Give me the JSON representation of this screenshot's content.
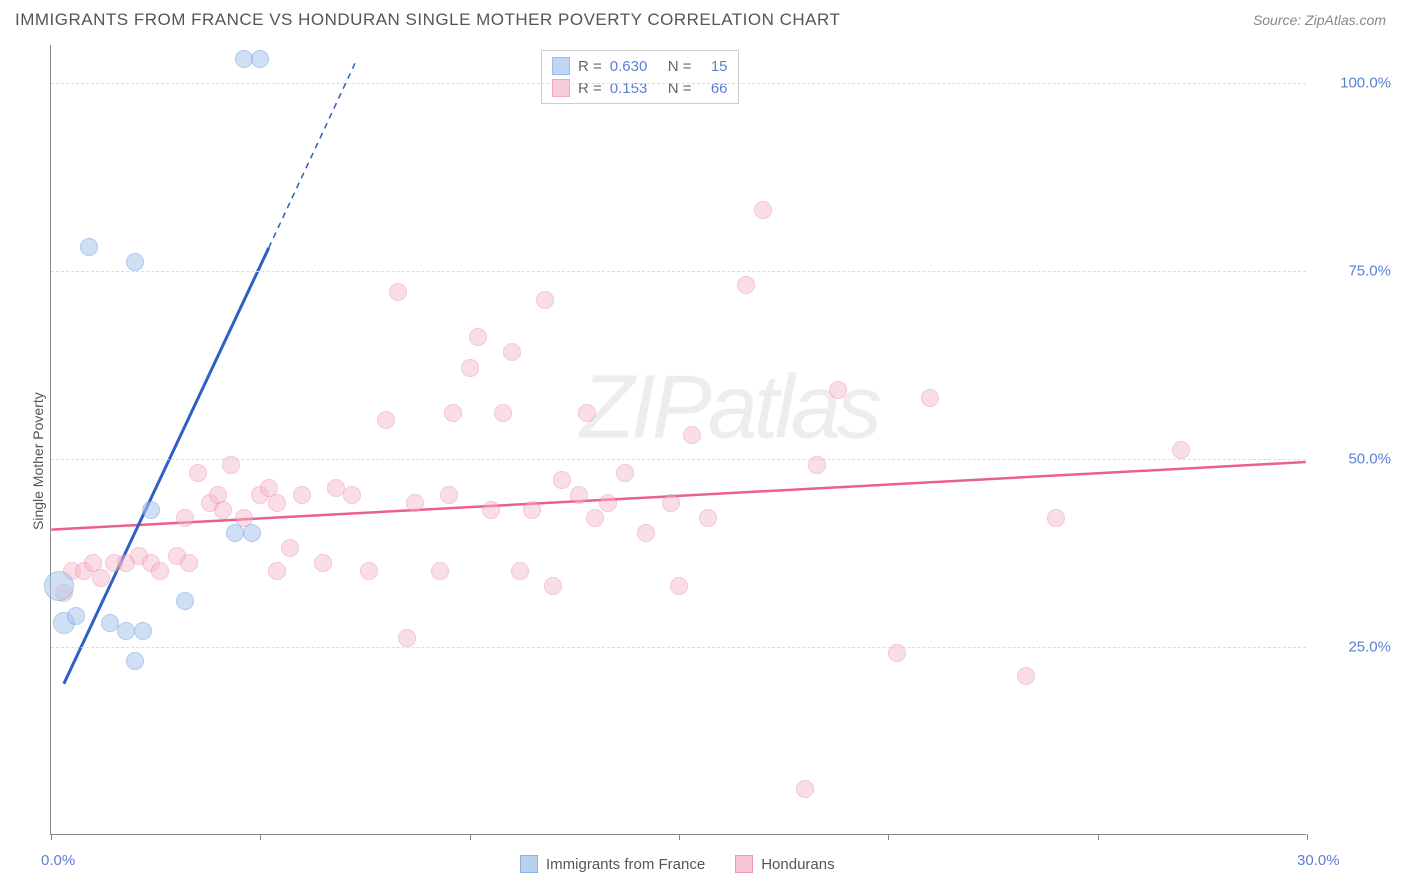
{
  "header": {
    "title": "IMMIGRANTS FROM FRANCE VS HONDURAN SINGLE MOTHER POVERTY CORRELATION CHART",
    "source_label": "Source:",
    "source_name": "ZipAtlas.com"
  },
  "chart": {
    "type": "scatter",
    "ylabel": "Single Mother Poverty",
    "xlim": [
      0,
      30
    ],
    "ylim": [
      0,
      105
    ],
    "x_ticks": [
      0,
      5,
      10,
      15,
      20,
      25,
      30
    ],
    "y_ticks": [
      25,
      50,
      75,
      100
    ],
    "x_tick_labels": {
      "0": "0.0%",
      "30": "30.0%"
    },
    "y_tick_labels": {
      "25": "25.0%",
      "50": "50.0%",
      "75": "75.0%",
      "100": "100.0%"
    },
    "grid_color": "#dddddd",
    "axis_color": "#888888",
    "background_color": "#ffffff"
  },
  "series": {
    "france": {
      "label": "Immigrants from France",
      "fill_color": "#a8c5ec",
      "stroke_color": "#6d9fe0",
      "fill_opacity": 0.55,
      "marker_radius": 9,
      "R": "0.630",
      "N": "15",
      "trend": {
        "x1": 0.3,
        "y1": 20,
        "x2": 5.2,
        "y2": 78,
        "dash_to_x": 7.3,
        "dash_to_y": 103,
        "color": "#2e5fc4",
        "width": 3
      },
      "points": [
        {
          "x": 0.2,
          "y": 33,
          "r": 15
        },
        {
          "x": 0.3,
          "y": 28,
          "r": 11
        },
        {
          "x": 0.6,
          "y": 29,
          "r": 9
        },
        {
          "x": 0.9,
          "y": 78,
          "r": 9
        },
        {
          "x": 2.0,
          "y": 76,
          "r": 9
        },
        {
          "x": 4.6,
          "y": 103,
          "r": 9
        },
        {
          "x": 5.0,
          "y": 103,
          "r": 9
        },
        {
          "x": 2.0,
          "y": 23,
          "r": 9
        },
        {
          "x": 1.4,
          "y": 28,
          "r": 9
        },
        {
          "x": 1.8,
          "y": 27,
          "r": 9
        },
        {
          "x": 2.2,
          "y": 27,
          "r": 9
        },
        {
          "x": 3.2,
          "y": 31,
          "r": 9
        },
        {
          "x": 2.4,
          "y": 43,
          "r": 9
        },
        {
          "x": 4.4,
          "y": 40,
          "r": 9
        },
        {
          "x": 4.8,
          "y": 40,
          "r": 9
        }
      ]
    },
    "honduras": {
      "label": "Hondurans",
      "fill_color": "#f5b8c9",
      "stroke_color": "#ec7fa3",
      "fill_opacity": 0.45,
      "marker_radius": 9,
      "R": "0.153",
      "N": "66",
      "trend": {
        "x1": 0,
        "y1": 40.5,
        "x2": 30,
        "y2": 49.5,
        "color": "#ec5f8c",
        "width": 2.5
      },
      "points": [
        {
          "x": 0.3,
          "y": 32
        },
        {
          "x": 0.5,
          "y": 35
        },
        {
          "x": 0.8,
          "y": 35
        },
        {
          "x": 1.0,
          "y": 36
        },
        {
          "x": 1.2,
          "y": 34
        },
        {
          "x": 1.5,
          "y": 36
        },
        {
          "x": 1.8,
          "y": 36
        },
        {
          "x": 2.1,
          "y": 37
        },
        {
          "x": 2.4,
          "y": 36
        },
        {
          "x": 2.6,
          "y": 35
        },
        {
          "x": 3.0,
          "y": 37
        },
        {
          "x": 3.2,
          "y": 42
        },
        {
          "x": 3.3,
          "y": 36
        },
        {
          "x": 3.5,
          "y": 48
        },
        {
          "x": 3.8,
          "y": 44
        },
        {
          "x": 4.0,
          "y": 45
        },
        {
          "x": 4.1,
          "y": 43
        },
        {
          "x": 4.3,
          "y": 49
        },
        {
          "x": 4.6,
          "y": 42
        },
        {
          "x": 5.0,
          "y": 45
        },
        {
          "x": 5.2,
          "y": 46
        },
        {
          "x": 5.4,
          "y": 35
        },
        {
          "x": 5.4,
          "y": 44
        },
        {
          "x": 5.7,
          "y": 38
        },
        {
          "x": 6.0,
          "y": 45
        },
        {
          "x": 6.5,
          "y": 36
        },
        {
          "x": 7.2,
          "y": 45
        },
        {
          "x": 7.6,
          "y": 35
        },
        {
          "x": 8.0,
          "y": 55
        },
        {
          "x": 8.3,
          "y": 72
        },
        {
          "x": 8.5,
          "y": 26
        },
        {
          "x": 8.7,
          "y": 44
        },
        {
          "x": 9.3,
          "y": 35
        },
        {
          "x": 9.5,
          "y": 45
        },
        {
          "x": 9.6,
          "y": 56
        },
        {
          "x": 10.0,
          "y": 62
        },
        {
          "x": 10.2,
          "y": 66
        },
        {
          "x": 10.5,
          "y": 43
        },
        {
          "x": 10.8,
          "y": 56
        },
        {
          "x": 11.2,
          "y": 35
        },
        {
          "x": 11.5,
          "y": 43
        },
        {
          "x": 11.8,
          "y": 71
        },
        {
          "x": 12.0,
          "y": 33
        },
        {
          "x": 12.2,
          "y": 47
        },
        {
          "x": 12.6,
          "y": 45
        },
        {
          "x": 12.8,
          "y": 56
        },
        {
          "x": 13.0,
          "y": 42
        },
        {
          "x": 13.3,
          "y": 44
        },
        {
          "x": 13.7,
          "y": 48
        },
        {
          "x": 14.2,
          "y": 40
        },
        {
          "x": 14.8,
          "y": 44
        },
        {
          "x": 15.0,
          "y": 33
        },
        {
          "x": 15.3,
          "y": 53
        },
        {
          "x": 15.7,
          "y": 42
        },
        {
          "x": 16.6,
          "y": 73
        },
        {
          "x": 17.0,
          "y": 83
        },
        {
          "x": 18.0,
          "y": 6
        },
        {
          "x": 18.3,
          "y": 49
        },
        {
          "x": 18.8,
          "y": 59
        },
        {
          "x": 20.2,
          "y": 24
        },
        {
          "x": 21.0,
          "y": 58
        },
        {
          "x": 23.3,
          "y": 21
        },
        {
          "x": 24.0,
          "y": 42
        },
        {
          "x": 27.0,
          "y": 51
        },
        {
          "x": 6.8,
          "y": 46
        },
        {
          "x": 11.0,
          "y": 64
        }
      ]
    }
  },
  "legend_top": {
    "R_label": "R =",
    "N_label": "N ="
  },
  "watermark": {
    "text_bold": "ZIP",
    "text_light": "atlas"
  }
}
